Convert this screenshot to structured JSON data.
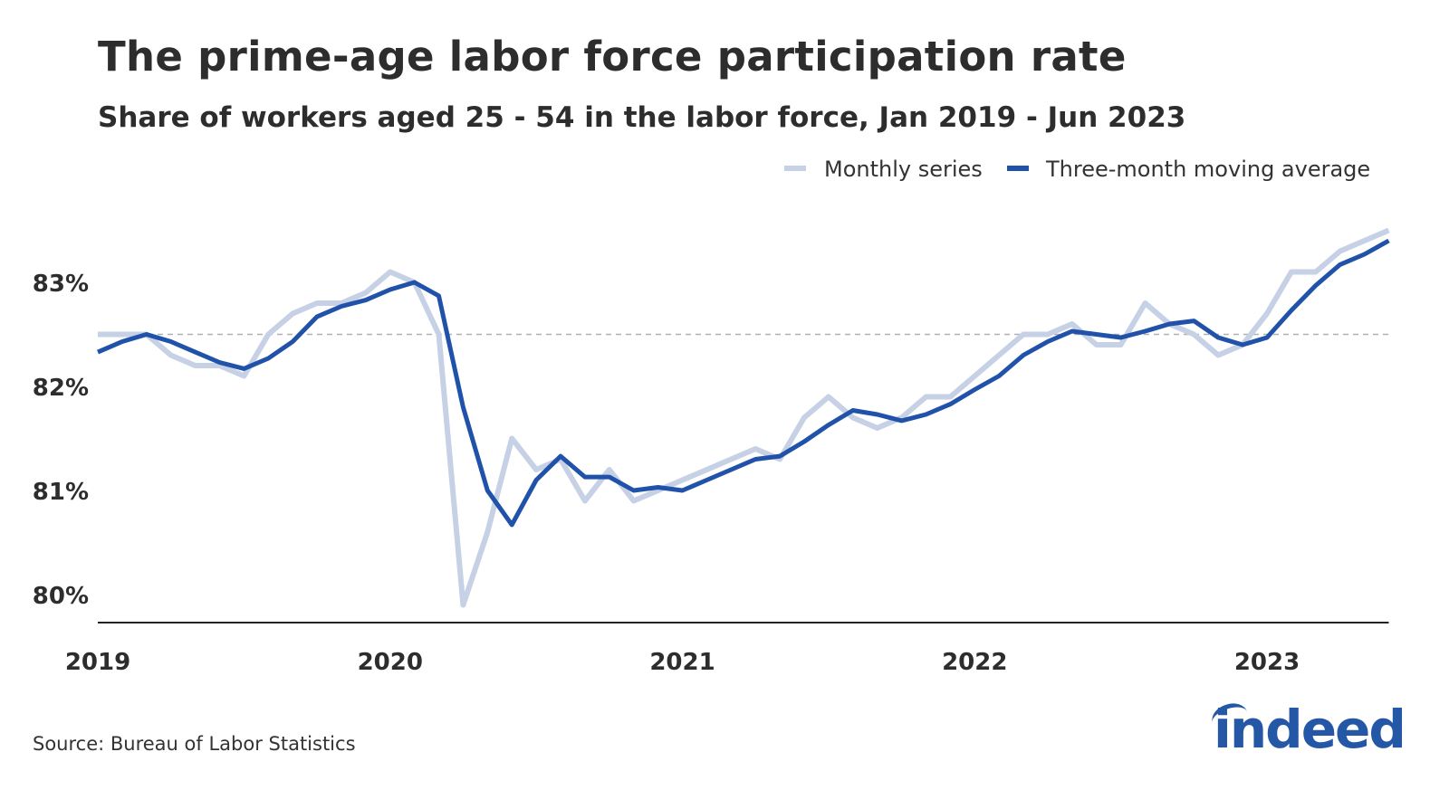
{
  "chart_data": {
    "type": "line",
    "title": "The prime-age labor force participation rate",
    "subtitle": "Share of workers aged 25 - 54 in the labor force, Jan 2019 - Jun 2023",
    "source": "Source: Bureau of Labor Statistics",
    "xlabel": "",
    "ylabel": "",
    "x_start": "2019-01",
    "x_end": "2023-06",
    "x_ticks": [
      "2019",
      "2020",
      "2021",
      "2022",
      "2023"
    ],
    "y_ticks": [
      80,
      81,
      82,
      83
    ],
    "y_tick_labels": [
      "80%",
      "81%",
      "82%",
      "83%"
    ],
    "ylim": [
      79.73,
      83.7
    ],
    "reference_line": 82.5,
    "grid": false,
    "legend_position": "top-right",
    "series": [
      {
        "name": "Monthly series",
        "color": "#c6d1e6",
        "values": [
          82.5,
          82.5,
          82.5,
          82.3,
          82.2,
          82.2,
          82.1,
          82.5,
          82.7,
          82.8,
          82.8,
          82.9,
          83.1,
          83.0,
          82.5,
          79.9,
          80.6,
          81.5,
          81.2,
          81.3,
          80.9,
          81.2,
          80.9,
          81.0,
          81.1,
          81.2,
          81.3,
          81.4,
          81.3,
          81.7,
          81.9,
          81.7,
          81.6,
          81.7,
          81.9,
          81.9,
          82.1,
          82.3,
          82.5,
          82.5,
          82.6,
          82.4,
          82.4,
          82.8,
          82.6,
          82.5,
          82.3,
          82.4,
          82.7,
          83.1,
          83.1,
          83.3,
          83.4,
          83.5
        ]
      },
      {
        "name": "Three-month moving average",
        "color": "#2052aa",
        "values": [
          82.33,
          82.43,
          82.5,
          82.43,
          82.33,
          82.23,
          82.17,
          82.27,
          82.43,
          82.67,
          82.77,
          82.83,
          82.93,
          83.0,
          82.87,
          81.8,
          81.0,
          80.67,
          81.1,
          81.33,
          81.13,
          81.13,
          81.0,
          81.03,
          81.0,
          81.1,
          81.2,
          81.3,
          81.33,
          81.47,
          81.63,
          81.77,
          81.73,
          81.67,
          81.73,
          81.83,
          81.97,
          82.1,
          82.3,
          82.43,
          82.53,
          82.5,
          82.47,
          82.53,
          82.6,
          82.63,
          82.47,
          82.4,
          82.47,
          82.73,
          82.97,
          83.17,
          83.27,
          83.4
        ]
      }
    ]
  },
  "logo": "indeed"
}
